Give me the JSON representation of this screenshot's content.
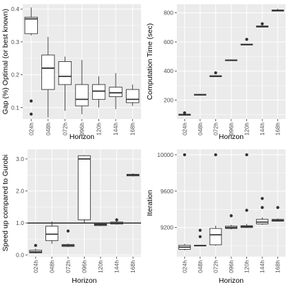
{
  "chart_data": [
    {
      "type": "boxplot",
      "xlabel": "Horizon",
      "ylabel": "Gap (%) Optimal (or best known)",
      "categories": [
        "024h",
        "048h",
        "072h",
        "096h",
        "120h",
        "144h",
        "168h"
      ],
      "ylim": [
        0.065,
        0.415
      ],
      "yticks": [
        0.1,
        0.2,
        0.3,
        0.4
      ],
      "ytick_labels": [
        "0.1",
        "0.2",
        "0.3",
        "0.4"
      ],
      "grid": true,
      "boxes": [
        {
          "whisker_low": 0.32,
          "q1": 0.325,
          "median": 0.37,
          "q3": 0.375,
          "whisker_high": 0.405,
          "outliers": [
            0.12,
            0.08
          ]
        },
        {
          "whisker_low": 0.07,
          "q1": 0.155,
          "median": 0.22,
          "q3": 0.26,
          "whisker_high": 0.315
        },
        {
          "whisker_low": 0.09,
          "q1": 0.17,
          "median": 0.195,
          "q3": 0.24,
          "whisker_high": 0.255
        },
        {
          "whisker_low": 0.08,
          "q1": 0.105,
          "median": 0.125,
          "q3": 0.17,
          "whisker_high": 0.245
        },
        {
          "whisker_low": 0.1,
          "q1": 0.125,
          "median": 0.15,
          "q3": 0.17,
          "whisker_high": 0.195
        },
        {
          "whisker_low": 0.095,
          "q1": 0.133,
          "median": 0.145,
          "q3": 0.162,
          "whisker_high": 0.205
        },
        {
          "whisker_low": 0.105,
          "q1": 0.115,
          "median": 0.125,
          "q3": 0.155,
          "whisker_high": 0.17
        }
      ]
    },
    {
      "type": "boxplot",
      "xlabel": "Horizon",
      "ylabel": "Computation Time (sec)",
      "categories": [
        "024h",
        "048h",
        "072h",
        "096h",
        "120h",
        "144h",
        "168h"
      ],
      "ylim": [
        70,
        860
      ],
      "yticks": [
        200,
        400,
        600,
        800
      ],
      "ytick_labels": [
        "200",
        "400",
        "600",
        "800"
      ],
      "grid": true,
      "boxes": [
        {
          "whisker_low": 95,
          "q1": 96,
          "median": 100,
          "q3": 103,
          "whisker_high": 106,
          "outliers": [
            113
          ]
        },
        {
          "whisker_low": 232,
          "q1": 234,
          "median": 237,
          "q3": 240,
          "whisker_high": 243
        },
        {
          "whisker_low": 360,
          "q1": 361,
          "median": 365,
          "q3": 368,
          "whisker_high": 370,
          "outliers": [
            388
          ]
        },
        {
          "whisker_low": 470,
          "q1": 471,
          "median": 474,
          "q3": 477,
          "whisker_high": 480
        },
        {
          "whisker_low": 578,
          "q1": 579,
          "median": 582,
          "q3": 585,
          "whisker_high": 588,
          "outliers": [
            618
          ]
        },
        {
          "whisker_low": 700,
          "q1": 702,
          "median": 706,
          "q3": 710,
          "whisker_high": 714,
          "outliers": [
            725
          ]
        },
        {
          "whisker_low": 810,
          "q1": 812,
          "median": 815,
          "q3": 820,
          "whisker_high": 828
        }
      ]
    },
    {
      "type": "boxplot",
      "xlabel": "Horizon",
      "ylabel": "Speed up compared to Gurobi",
      "categories": [
        "024h",
        "048h",
        "072h",
        "096h",
        "120h",
        "144h",
        "168h"
      ],
      "ylim": [
        -0.05,
        3.3
      ],
      "yticks": [
        0.0,
        1.0,
        2.0,
        3.0
      ],
      "ytick_labels": [
        "0.0",
        "1.0",
        "2.0",
        "3.0"
      ],
      "grid": true,
      "reference_line": 1.0,
      "boxes": [
        {
          "whisker_low": 0.05,
          "q1": 0.07,
          "median": 0.1,
          "q3": 0.15,
          "whisker_high": 0.2,
          "outliers": [
            0.3
          ]
        },
        {
          "whisker_low": 0.35,
          "q1": 0.45,
          "median": 0.65,
          "q3": 0.9,
          "whisker_high": 1.05
        },
        {
          "whisker_low": 0.25,
          "q1": 0.27,
          "median": 0.3,
          "q3": 0.33,
          "whisker_high": 0.36,
          "outliers": [
            0.75
          ]
        },
        {
          "whisker_low": 1.0,
          "q1": 1.1,
          "median": 3.0,
          "q3": 3.1,
          "whisker_high": 3.12
        },
        {
          "whisker_low": 0.9,
          "q1": 0.92,
          "median": 0.95,
          "q3": 0.97,
          "whisker_high": 1.0
        },
        {
          "whisker_low": 0.95,
          "q1": 0.97,
          "median": 1.0,
          "q3": 1.03,
          "whisker_high": 1.06,
          "outliers": [
            1.1
          ]
        },
        {
          "whisker_low": 2.45,
          "q1": 2.47,
          "median": 2.5,
          "q3": 2.52,
          "whisker_high": 2.55
        }
      ]
    },
    {
      "type": "boxplot",
      "xlabel": "Horizon",
      "ylabel": "Iteration",
      "categories": [
        "024h",
        "048h",
        "072h",
        "096h",
        "120h",
        "144h",
        "168h"
      ],
      "ylim": [
        8880,
        10060
      ],
      "yticks": [
        9200,
        9600,
        10000
      ],
      "ytick_labels": [
        "9200",
        "9600",
        "10000"
      ],
      "grid": true,
      "boxes": [
        {
          "whisker_low": 8950,
          "q1": 8960,
          "median": 8985,
          "q3": 9005,
          "whisker_high": 9020,
          "outliers": [
            10000
          ]
        },
        {
          "whisker_low": 8995,
          "q1": 8998,
          "median": 9002,
          "q3": 9006,
          "whisker_high": 9010,
          "outliers": [
            9100,
            9170
          ]
        },
        {
          "whisker_low": 9000,
          "q1": 9010,
          "median": 9120,
          "q3": 9190,
          "whisker_high": 9220,
          "outliers": [
            10000
          ]
        },
        {
          "whisker_low": 9180,
          "q1": 9190,
          "median": 9200,
          "q3": 9215,
          "whisker_high": 9230,
          "outliers": [
            9330
          ]
        },
        {
          "whisker_low": 9195,
          "q1": 9200,
          "median": 9210,
          "q3": 9220,
          "whisker_high": 9240,
          "outliers": [
            10000,
            9390
          ]
        },
        {
          "whisker_low": 9230,
          "q1": 9240,
          "median": 9260,
          "q3": 9290,
          "whisker_high": 9310,
          "outliers": [
            9420,
            9520
          ]
        },
        {
          "whisker_low": 9265,
          "q1": 9270,
          "median": 9280,
          "q3": 9290,
          "whisker_high": 9300,
          "outliers": [
            9420
          ]
        }
      ]
    }
  ]
}
